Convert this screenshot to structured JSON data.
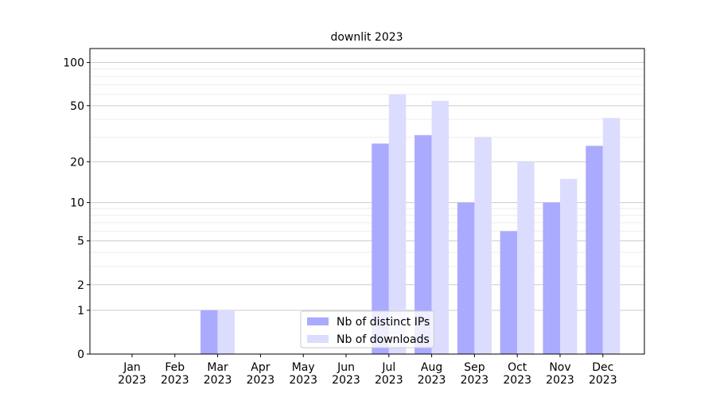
{
  "chart_data": {
    "type": "bar",
    "title": "downlit 2023",
    "categories": [
      [
        "Jan",
        "2023"
      ],
      [
        "Feb",
        "2023"
      ],
      [
        "Mar",
        "2023"
      ],
      [
        "Apr",
        "2023"
      ],
      [
        "May",
        "2023"
      ],
      [
        "Jun",
        "2023"
      ],
      [
        "Jul",
        "2023"
      ],
      [
        "Aug",
        "2023"
      ],
      [
        "Sep",
        "2023"
      ],
      [
        "Oct",
        "2023"
      ],
      [
        "Nov",
        "2023"
      ],
      [
        "Dec",
        "2023"
      ]
    ],
    "series": [
      {
        "name": "Nb of distinct IPs",
        "color": "#aaaaff",
        "values": [
          0,
          0,
          1,
          0,
          0,
          0,
          27,
          31,
          10,
          6,
          10,
          26
        ]
      },
      {
        "name": "Nb of downloads",
        "color": "#dcdcff",
        "values": [
          0,
          0,
          1,
          0,
          0,
          0,
          60,
          54,
          30,
          20,
          15,
          41
        ]
      }
    ],
    "yscale": "log1p",
    "ylim": [
      0,
      125
    ],
    "yticks": [
      0,
      1,
      2,
      5,
      10,
      20,
      50,
      100
    ],
    "minor_yticks": [
      3,
      4,
      6,
      7,
      8,
      9,
      30,
      40,
      60,
      70,
      80,
      90
    ],
    "grid": true,
    "legend": "lower center"
  }
}
